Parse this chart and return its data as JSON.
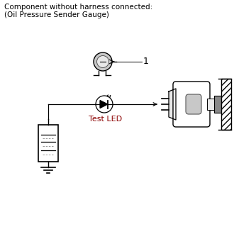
{
  "title_line1": "Component without harness connected:",
  "title_line2": "(Oil Pressure Sender Gauge)",
  "label_1": "1",
  "label_led": "Test LED",
  "bg_color": "#ffffff",
  "line_color": "#000000",
  "led_label_color": "#8B0000",
  "gray_light": "#e8e8e8",
  "gray_med": "#c8c8c8",
  "gray_dark": "#888888",
  "gray_darker": "#555555",
  "hatch_gray": "#aaaaaa"
}
